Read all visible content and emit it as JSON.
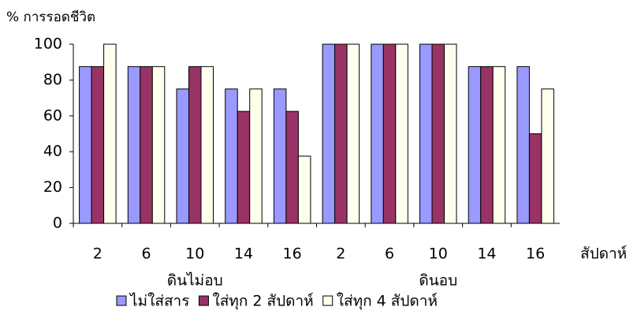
{
  "chart_data": {
    "type": "bar",
    "y_label": "% การรอดชีวิต",
    "x_label": "สัปดาห์",
    "categories": [
      "2",
      "6",
      "10",
      "14",
      "16",
      "2",
      "6",
      "10",
      "14",
      "16"
    ],
    "group_labels": [
      "ดินไม่อบ",
      "ดินอบ"
    ],
    "series": [
      {
        "name": "ไม่ใส่สาร",
        "color": "#9999ff",
        "values": [
          87.5,
          87.5,
          75,
          75,
          75,
          100,
          100,
          100,
          87.5,
          87.5
        ]
      },
      {
        "name": "ใส่ทุก 2 สัปดาห์",
        "color": "#993366",
        "values": [
          87.5,
          87.5,
          87.5,
          62.5,
          62.5,
          100,
          100,
          100,
          87.5,
          50
        ]
      },
      {
        "name": "ใส่ทุก 4 สัปดาห์",
        "color": "#ffffee",
        "values": [
          100,
          87.5,
          87.5,
          75,
          37.5,
          100,
          100,
          100,
          87.5,
          75
        ]
      }
    ],
    "ylim": [
      0,
      100
    ],
    "yticks": [
      0,
      20,
      40,
      60,
      80,
      100
    ],
    "grid": false
  }
}
